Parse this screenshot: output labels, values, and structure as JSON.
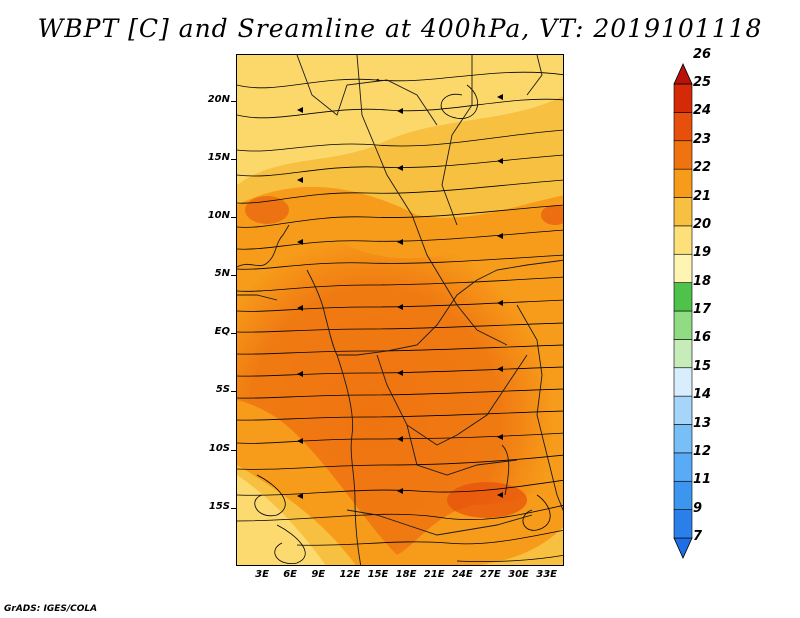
{
  "title": "WBPT [C] and Sreamline at 400hPa, VT: 2019101118",
  "footer": "GrADS: IGES/COLA",
  "map": {
    "lon_range": [
      0,
      35
    ],
    "lat_range": [
      -20,
      24
    ],
    "lat_ticks": [
      {
        "value": 20,
        "label": "20N"
      },
      {
        "value": 15,
        "label": "15N"
      },
      {
        "value": 10,
        "label": "10N"
      },
      {
        "value": 5,
        "label": "5N"
      },
      {
        "value": 0,
        "label": "EQ"
      },
      {
        "value": -5,
        "label": "5S"
      },
      {
        "value": -10,
        "label": "10S"
      },
      {
        "value": -15,
        "label": "15S"
      }
    ],
    "lon_ticks": [
      {
        "value": 3,
        "label": "3E"
      },
      {
        "value": 6,
        "label": "6E"
      },
      {
        "value": 9,
        "label": "9E"
      },
      {
        "value": 12,
        "label": "12E"
      },
      {
        "value": 15,
        "label": "15E"
      },
      {
        "value": 18,
        "label": "18E"
      },
      {
        "value": 21,
        "label": "21E"
      },
      {
        "value": 24,
        "label": "24E"
      },
      {
        "value": 27,
        "label": "27E"
      },
      {
        "value": 30,
        "label": "30E"
      },
      {
        "value": 33,
        "label": "33E"
      }
    ],
    "colorbar": [
      {
        "label": "7",
        "color": "#1e6ee6"
      },
      {
        "label": "9",
        "color": "#2a7fe8"
      },
      {
        "label": "11",
        "color": "#3c96f0"
      },
      {
        "label": "12",
        "color": "#5aabf5"
      },
      {
        "label": "13",
        "color": "#78bff7"
      },
      {
        "label": "14",
        "color": "#a6d5fa"
      },
      {
        "label": "15",
        "color": "#d8eefc"
      },
      {
        "label": "16",
        "color": "#c6ecb9"
      },
      {
        "label": "17",
        "color": "#8fdc82"
      },
      {
        "label": "18",
        "color": "#4ec24a"
      },
      {
        "label": "19",
        "color": "#fff5b3"
      },
      {
        "label": "20",
        "color": "#fde07a"
      },
      {
        "label": "21",
        "color": "#f8c040"
      },
      {
        "label": "22",
        "color": "#f79c1a"
      },
      {
        "label": "23",
        "color": "#ef7410"
      },
      {
        "label": "24",
        "color": "#e6500c"
      },
      {
        "label": "25",
        "color": "#d42a08"
      },
      {
        "label": "26",
        "color": "#b8120a"
      }
    ]
  }
}
